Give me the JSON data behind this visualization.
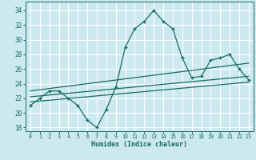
{
  "xlabel": "Humidex (Indice chaleur)",
  "ylabel": "",
  "xlim": [
    -0.5,
    23.5
  ],
  "ylim": [
    17.5,
    35.2
  ],
  "yticks": [
    18,
    20,
    22,
    24,
    26,
    28,
    30,
    32,
    34
  ],
  "xticks": [
    0,
    1,
    2,
    3,
    4,
    5,
    6,
    7,
    8,
    9,
    10,
    11,
    12,
    13,
    14,
    15,
    16,
    17,
    18,
    19,
    20,
    21,
    22,
    23
  ],
  "bg_color": "#cbe9ef",
  "line_color": "#1a6b60",
  "grid_color": "#ffffff",
  "main_x": [
    0,
    1,
    2,
    3,
    4,
    5,
    6,
    7,
    8,
    9,
    10,
    11,
    12,
    13,
    14,
    15,
    16,
    17,
    18,
    19,
    20,
    21,
    22,
    23
  ],
  "main_y": [
    21,
    22,
    23,
    23,
    22,
    21,
    19,
    18,
    20.5,
    23.5,
    29,
    31.5,
    32.5,
    34,
    32.5,
    31.5,
    27.5,
    24.8,
    25,
    27.2,
    27.5,
    28,
    26,
    24.5
  ],
  "line1_x": [
    0,
    23
  ],
  "line1_y": [
    21.5,
    24.2
  ],
  "line2_x": [
    0,
    23
  ],
  "line2_y": [
    22.2,
    25.0
  ],
  "line3_x": [
    0,
    23
  ],
  "line3_y": [
    23.0,
    26.8
  ]
}
